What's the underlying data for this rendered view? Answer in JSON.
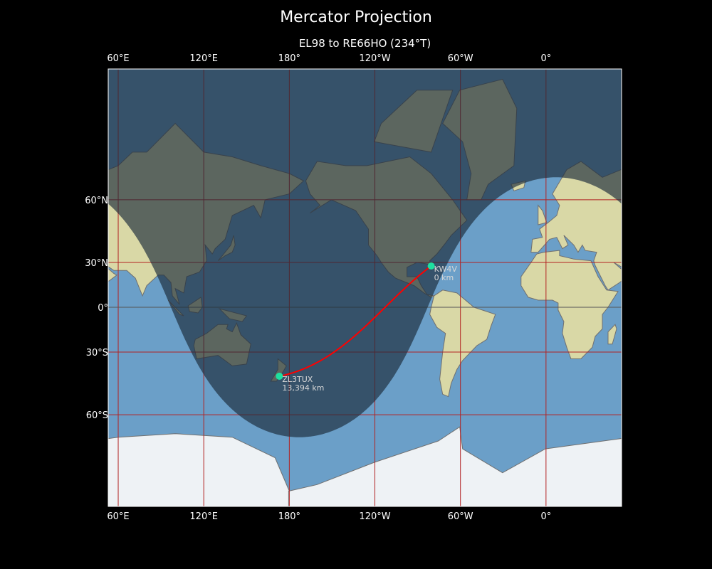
{
  "title": "Mercator Projection",
  "subtitle": "EL98 to RE66HO (234°T)",
  "map": {
    "projection": "mercator",
    "central_longitude": -127,
    "lon_range": [
      53,
      413
    ],
    "lat_range": [
      -80,
      84
    ],
    "lon_ticks": [
      {
        "lon": 60,
        "label": "60°E"
      },
      {
        "lon": 120,
        "label": "120°E"
      },
      {
        "lon": 180,
        "label": "180°"
      },
      {
        "lon": 240,
        "label": "120°W"
      },
      {
        "lon": 300,
        "label": "60°W"
      },
      {
        "lon": 360,
        "label": "0°"
      }
    ],
    "lat_ticks": [
      {
        "lat": 60,
        "label": "60°N"
      },
      {
        "lat": 30,
        "label": "30°N"
      },
      {
        "lat": 0,
        "label": "0°"
      },
      {
        "lat": -30,
        "label": "30°S"
      },
      {
        "lat": -60,
        "label": "60°S"
      }
    ],
    "night_shading": {
      "subsolar_lat": -23,
      "subsolar_lon": 7
    },
    "stations": [
      {
        "call": "KW4V",
        "distance": "0 km",
        "lat": 27.8,
        "lon": -80.5
      },
      {
        "call": "ZL3TUX",
        "distance": "13,394 km",
        "lat": -43.5,
        "lon": 173
      }
    ],
    "colors": {
      "path": "#ff0000",
      "station": "#1de0a0",
      "grid": "#b22222",
      "ocean": "#6b9fc8",
      "land": "#d9d8a6",
      "ice": "#eef2f5"
    }
  }
}
